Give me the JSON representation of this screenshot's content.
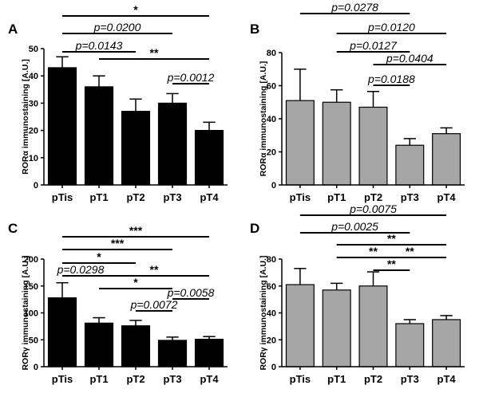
{
  "chart_data": [
    {
      "panel": "A",
      "type": "bar",
      "categories": [
        "pTis",
        "pT1",
        "pT2",
        "pT3",
        "pT4"
      ],
      "values": [
        43,
        36,
        27,
        30,
        20
      ],
      "errors": [
        4,
        4,
        4.5,
        3.5,
        3
      ],
      "ylabel": "RORα immunostaining [A.U.]",
      "ylim": [
        0,
        50
      ],
      "yticks": [
        0,
        10,
        20,
        30,
        40,
        50
      ],
      "bar_color": "#000000",
      "annotations": [
        {
          "from": 0,
          "to": 4,
          "label": "*"
        },
        {
          "from": 0,
          "to": 3,
          "label": "p=0.0200"
        },
        {
          "from": 0,
          "to": 2,
          "label": "p=0.0143"
        },
        {
          "from": 1,
          "to": 4,
          "label": "**"
        },
        {
          "from": 3,
          "to": 4,
          "label": "p=0.0012"
        }
      ]
    },
    {
      "panel": "B",
      "type": "bar",
      "categories": [
        "pTis",
        "pT1",
        "pT2",
        "pT3",
        "pT4"
      ],
      "values": [
        51,
        50,
        47,
        24,
        31
      ],
      "errors": [
        19,
        7.5,
        9.5,
        4,
        3.5
      ],
      "ylabel": "RORα immunostaining [A.U.]",
      "ylim": [
        0,
        80
      ],
      "yticks": [
        0,
        20,
        40,
        60,
        80
      ],
      "bar_color": "#a6a6a6",
      "annotations": [
        {
          "from": 0,
          "to": 3,
          "label": "p=0.0278"
        },
        {
          "from": 1,
          "to": 4,
          "label": "p=0.0120"
        },
        {
          "from": 1,
          "to": 3,
          "label": "p=0.0127"
        },
        {
          "from": 2,
          "to": 4,
          "label": "p=0.0404"
        },
        {
          "from": 2,
          "to": 3,
          "label": "p=0.0188"
        }
      ]
    },
    {
      "panel": "C",
      "type": "bar",
      "categories": [
        "pTis",
        "pT1",
        "pT2",
        "pT3",
        "pT4"
      ],
      "values": [
        128,
        81,
        76,
        49,
        51
      ],
      "errors": [
        28,
        10,
        10,
        6,
        5
      ],
      "ylabel": "RORγ immunostaining [A.U.]",
      "ylim": [
        0,
        200
      ],
      "yticks": [
        0,
        50,
        100,
        150,
        200
      ],
      "bar_color": "#000000",
      "annotations": [
        {
          "from": 0,
          "to": 4,
          "label": "***"
        },
        {
          "from": 0,
          "to": 3,
          "label": "***"
        },
        {
          "from": 0,
          "to": 2,
          "label": "*"
        },
        {
          "from": 0,
          "to": 1,
          "label": "p=0.0298"
        },
        {
          "from": 1,
          "to": 4,
          "label": "**"
        },
        {
          "from": 1,
          "to": 3,
          "label": "*"
        },
        {
          "from": 3,
          "to": 4,
          "label": "p=0.0058"
        },
        {
          "from": 2,
          "to": 3,
          "label": "p=0.0072"
        }
      ]
    },
    {
      "panel": "D",
      "type": "bar",
      "categories": [
        "pTis",
        "pT1",
        "pT2",
        "pT3",
        "pT4"
      ],
      "values": [
        61,
        57,
        60,
        32,
        35
      ],
      "errors": [
        12,
        5,
        10.5,
        3,
        3
      ],
      "ylabel": "RORγ immunostaining [A.U.]",
      "ylim": [
        0,
        80
      ],
      "yticks": [
        0,
        20,
        40,
        60,
        80
      ],
      "bar_color": "#a6a6a6",
      "annotations": [
        {
          "from": 0,
          "to": 4,
          "label": "p=0.0075"
        },
        {
          "from": 0,
          "to": 3,
          "label": "p=0.0025"
        },
        {
          "from": 1,
          "to": 4,
          "label": "**"
        },
        {
          "from": 1,
          "to": 3,
          "label": "**"
        },
        {
          "from": 2,
          "to": 4,
          "label": "**"
        },
        {
          "from": 2,
          "to": 3,
          "label": "**"
        }
      ]
    }
  ]
}
